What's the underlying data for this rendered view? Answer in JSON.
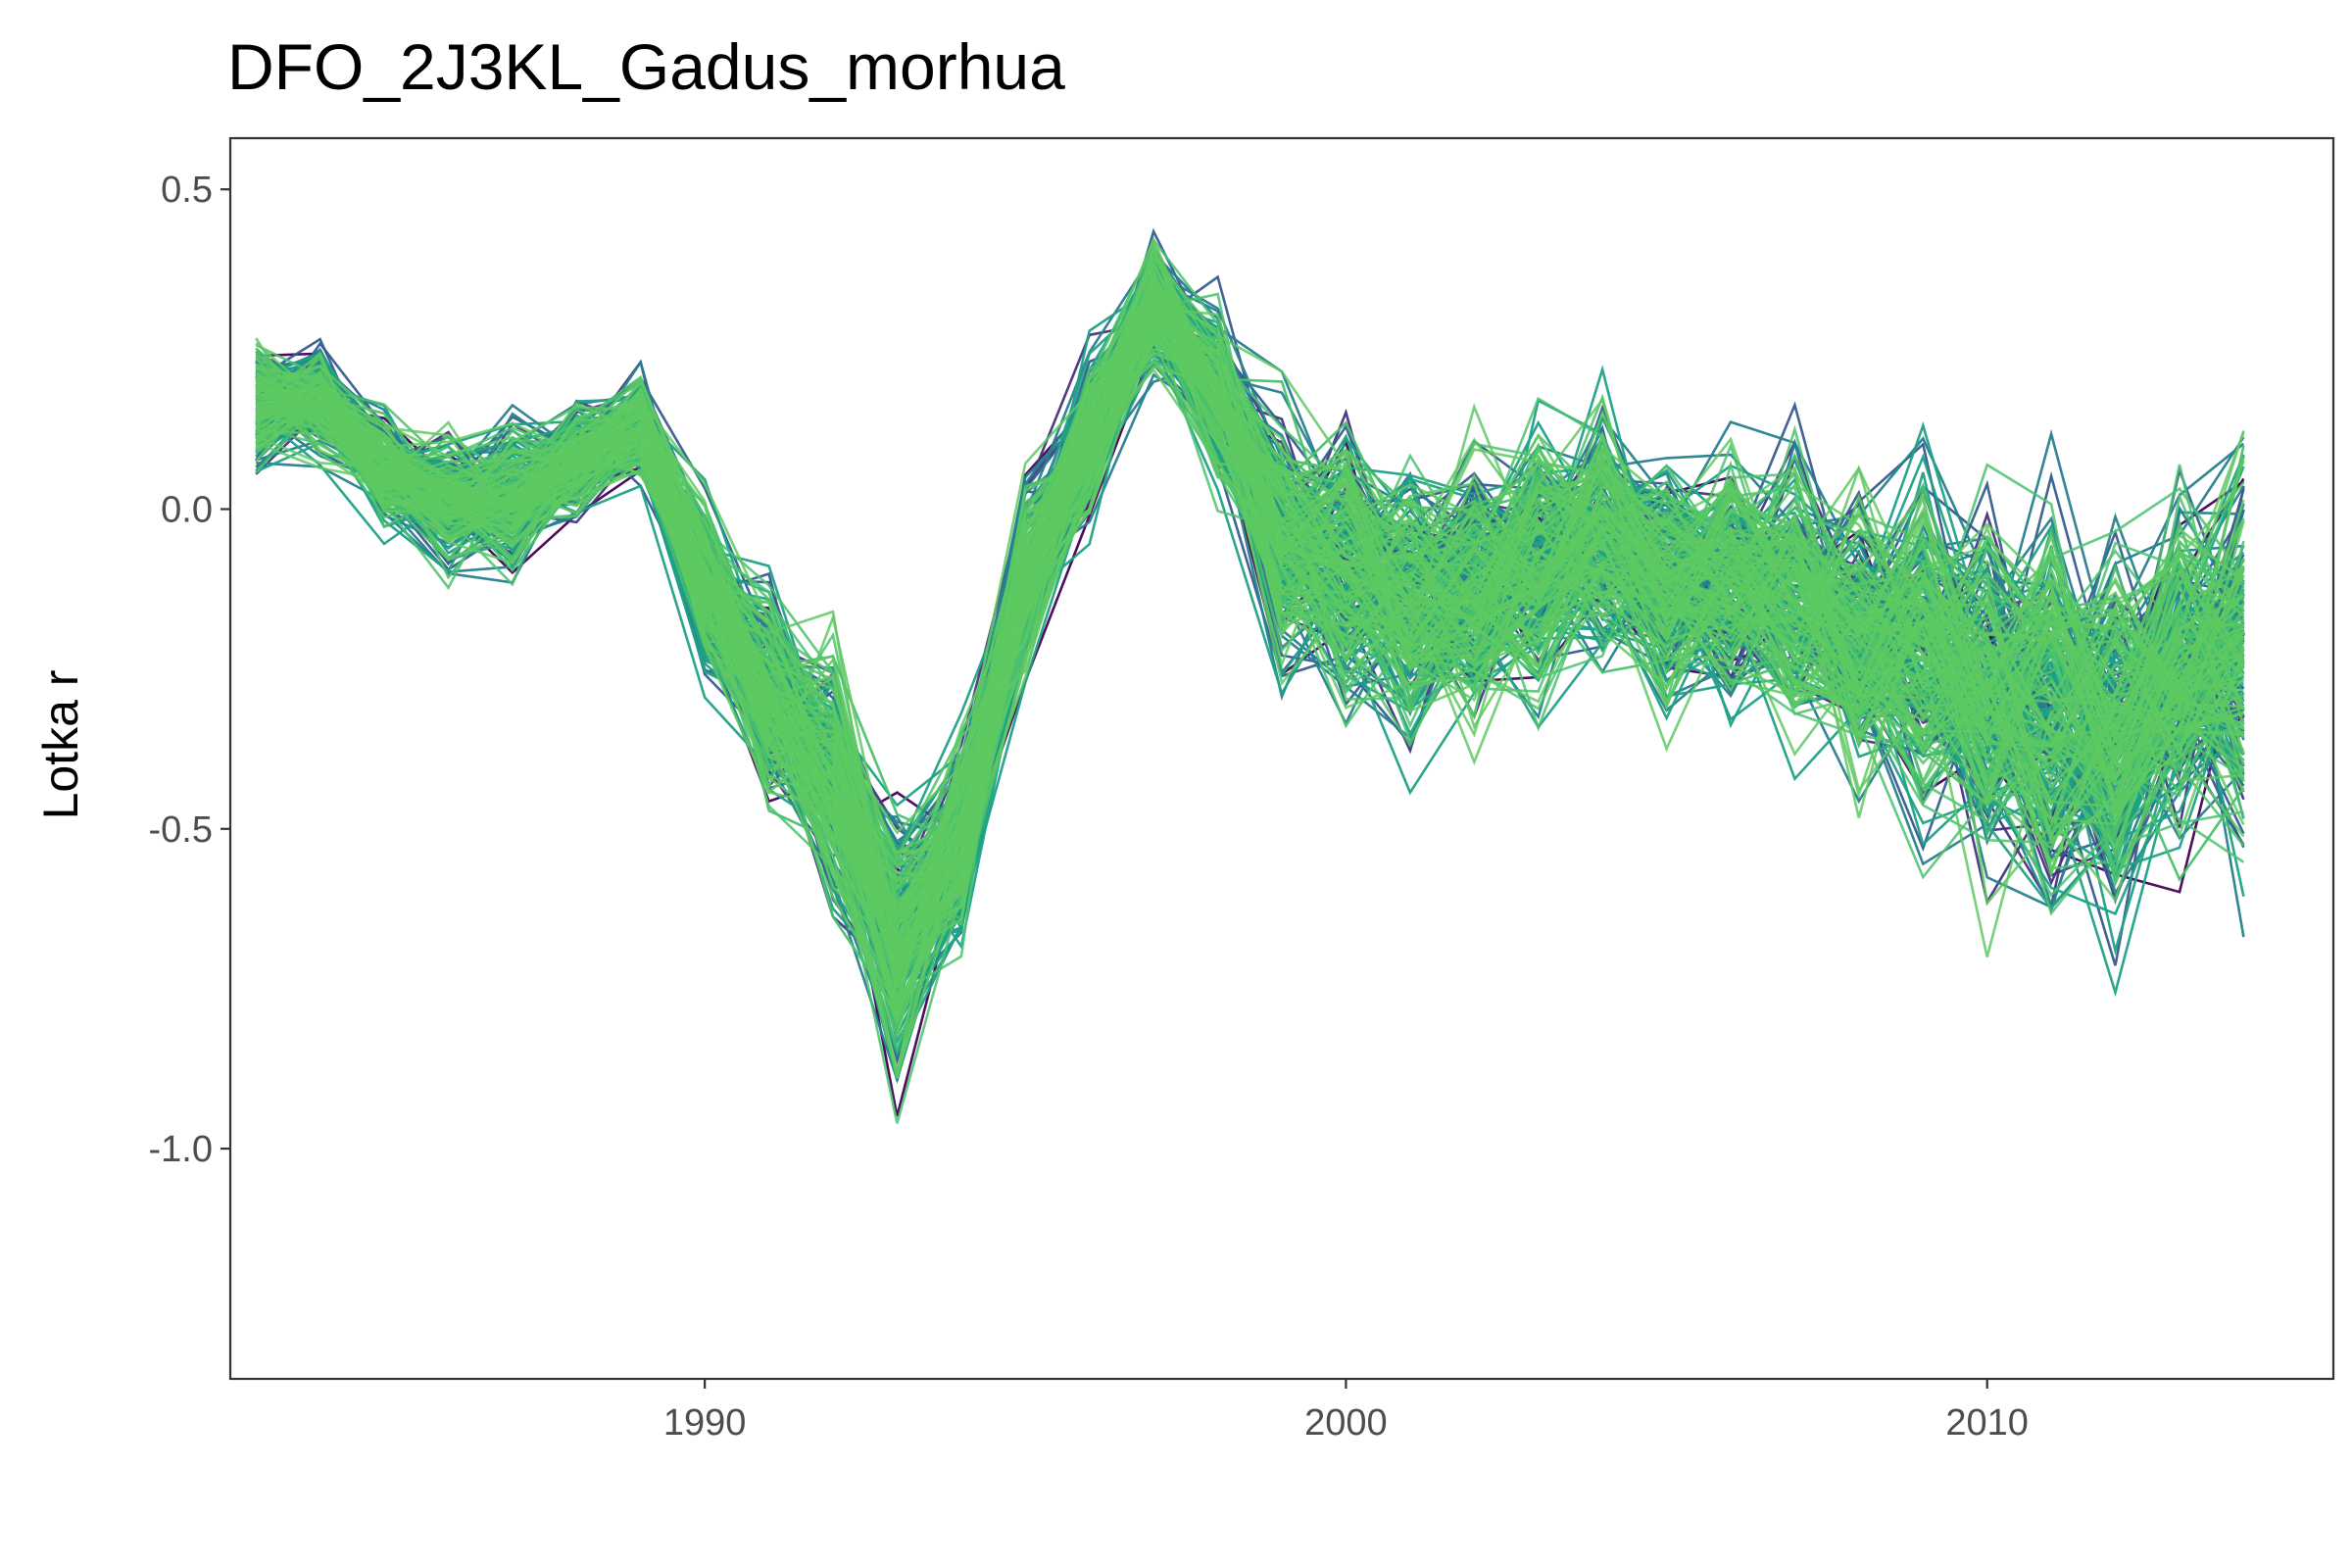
{
  "chart_data": {
    "type": "line",
    "title": "DFO_2J3KL_Gadus_morhua",
    "xlabel": "",
    "ylabel": "Lotka r",
    "xlim": [
      1982.6,
      2015.4
    ],
    "ylim": [
      -1.36,
      0.58
    ],
    "x_ticks": [
      1990,
      2000,
      2010
    ],
    "x_tick_labels": [
      "1990",
      "2000",
      "2010"
    ],
    "y_ticks": [
      0.5,
      0.0,
      -0.5,
      -1.0
    ],
    "y_tick_labels": [
      "0.5",
      "0.0",
      "-0.5",
      "-1.0"
    ],
    "grid": false,
    "legend": "none",
    "n_series": 250,
    "colormap": [
      "#440154",
      "#46337e",
      "#365c8d",
      "#277f8e",
      "#1fa187",
      "#4ac16d",
      "#5ec962"
    ],
    "years": [
      1983,
      1984,
      1985,
      1986,
      1987,
      1988,
      1989,
      1990,
      1991,
      1992,
      1993,
      1994,
      1995,
      1996,
      1997,
      1998,
      1999,
      2000,
      2001,
      2002,
      2003,
      2004,
      2005,
      2006,
      2007,
      2008,
      2009,
      2010,
      2011,
      2012,
      2013,
      2014
    ],
    "center": [
      0.16,
      0.17,
      0.06,
      0.01,
      0.02,
      0.08,
      0.13,
      -0.12,
      -0.28,
      -0.42,
      -0.68,
      -0.52,
      -0.1,
      0.1,
      0.32,
      0.18,
      -0.05,
      -0.1,
      -0.15,
      -0.12,
      -0.08,
      -0.03,
      -0.12,
      -0.1,
      -0.12,
      -0.2,
      -0.22,
      -0.28,
      -0.3,
      -0.35,
      -0.25,
      -0.22
    ],
    "spread": [
      0.09,
      0.08,
      0.08,
      0.1,
      0.1,
      0.08,
      0.08,
      0.14,
      0.16,
      0.18,
      0.2,
      0.16,
      0.14,
      0.12,
      0.1,
      0.12,
      0.18,
      0.2,
      0.2,
      0.2,
      0.2,
      0.18,
      0.18,
      0.18,
      0.2,
      0.22,
      0.26,
      0.28,
      0.3,
      0.3,
      0.26,
      0.28
    ]
  }
}
